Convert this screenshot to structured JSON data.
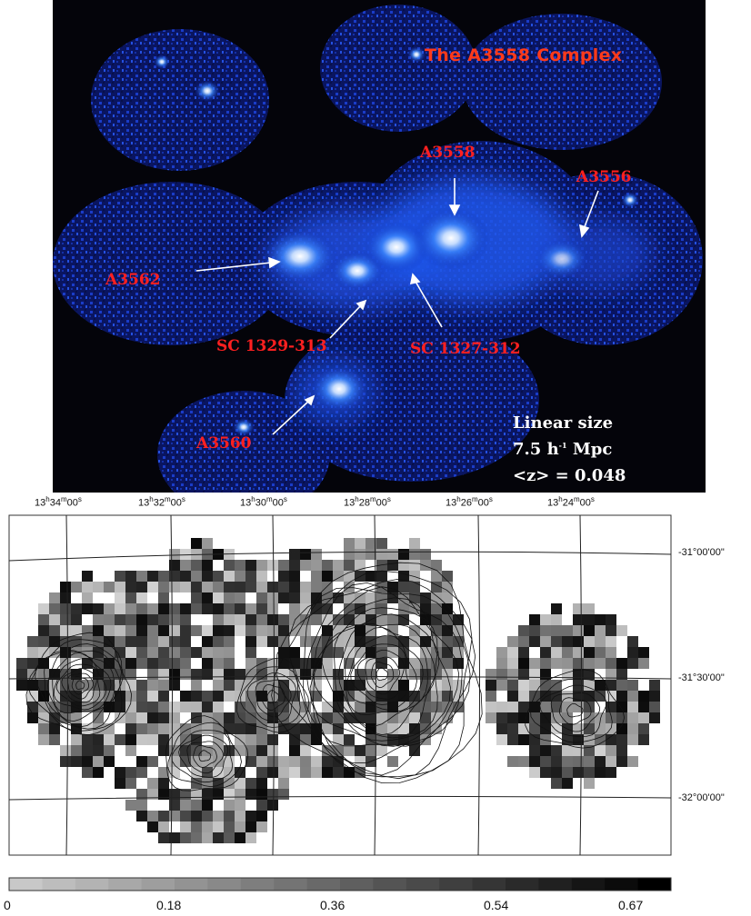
{
  "top_panel": {
    "title": "The A3558 Complex",
    "labels": {
      "a3558": "A3558",
      "a3556": "A3556",
      "a3562": "A3562",
      "sc1329": "SC 1329-313",
      "sc1327": "SC 1327-312",
      "a3560": "A3560"
    },
    "info": {
      "linear_size": "Linear size",
      "scale": "7.5 h",
      "scale_sup": "-1",
      "scale_unit": " Mpc",
      "redshift": "<z> = 0.048"
    },
    "colors": {
      "label_red": "#ff2020",
      "title_orange": "#ff3a1a",
      "xray_blue": "#3a7bff"
    }
  },
  "bottom_panel": {
    "ra_ticks": [
      {
        "h": "13",
        "m": "34",
        "s": "00"
      },
      {
        "h": "13",
        "m": "32",
        "s": "00"
      },
      {
        "h": "13",
        "m": "30",
        "s": "00"
      },
      {
        "h": "13",
        "m": "28",
        "s": "00"
      },
      {
        "h": "13",
        "m": "26",
        "s": "00"
      },
      {
        "h": "13",
        "m": "24",
        "s": "00"
      }
    ],
    "dec_ticks": [
      "-31°00'00\"",
      "-31°30'00\"",
      "-32°00'00\""
    ],
    "colorbar_ticks": [
      "0",
      "0.18",
      "0.36",
      "0.54",
      "0.67"
    ],
    "colorbar_range": [
      0,
      0.67
    ]
  }
}
